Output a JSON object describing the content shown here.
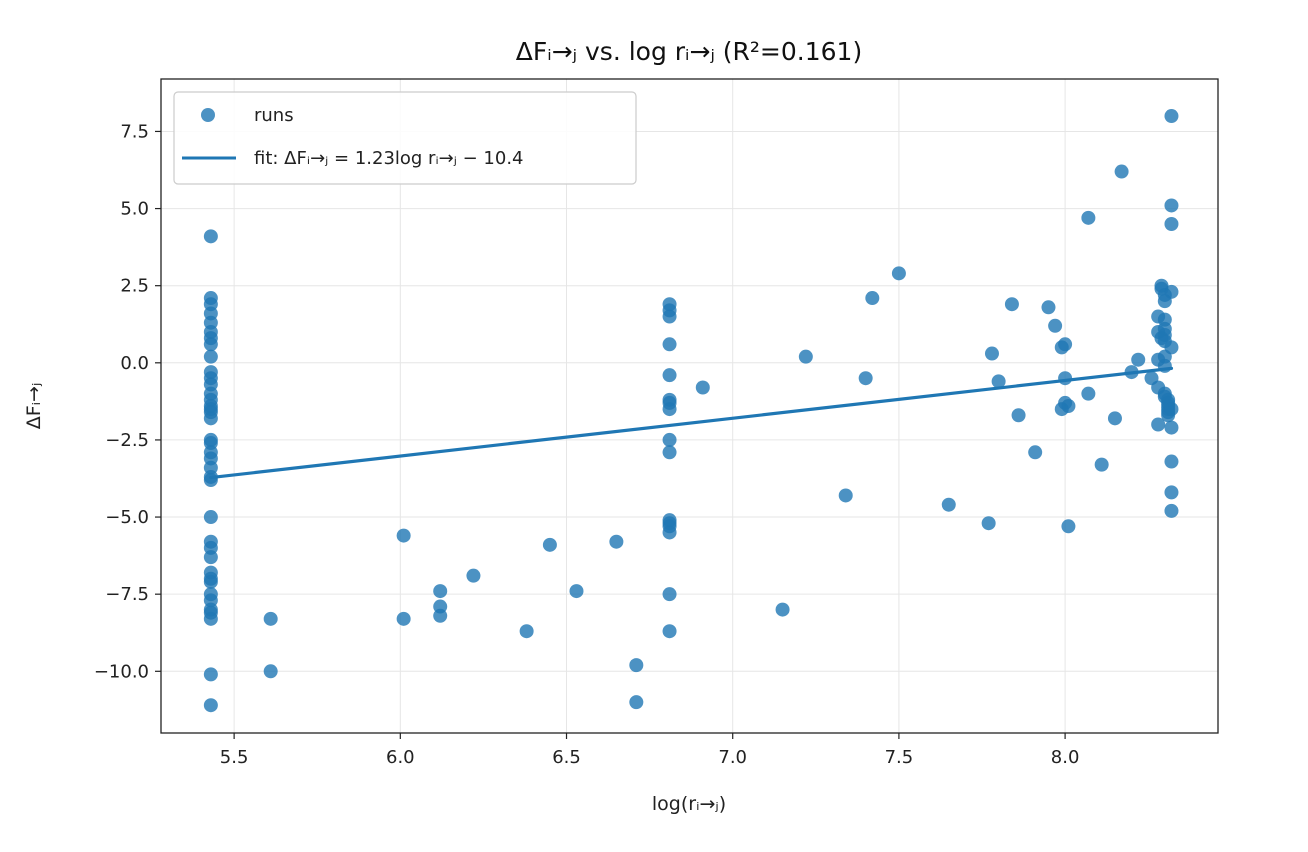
{
  "chart_data": {
    "type": "scatter",
    "title": "ΔFᵢ→ⱼ vs. log rᵢ→ⱼ (R²=0.161)",
    "xlabel": "log(rᵢ→ⱼ)",
    "ylabel": "ΔFᵢ→ⱼ",
    "xlim": [
      5.28,
      8.46
    ],
    "ylim": [
      -12.0,
      9.2
    ],
    "xticks": [
      5.5,
      6.0,
      6.5,
      7.0,
      7.5,
      8.0
    ],
    "xtick_labels": [
      "5.5",
      "6.0",
      "6.5",
      "7.0",
      "7.5",
      "8.0"
    ],
    "yticks": [
      -10.0,
      -7.5,
      -5.0,
      -2.5,
      0.0,
      2.5,
      5.0,
      7.5
    ],
    "ytick_labels": [
      "−10.0",
      "−7.5",
      "−5.0",
      "−2.5",
      "0.0",
      "2.5",
      "5.0",
      "7.5"
    ],
    "grid": true,
    "legend_position": "top-left",
    "colors": {
      "series": "#1f77b4"
    },
    "series": [
      {
        "name": "runs",
        "kind": "scatter",
        "x": [
          5.43,
          5.43,
          5.43,
          5.43,
          5.43,
          5.43,
          5.43,
          5.43,
          5.43,
          5.43,
          5.43,
          5.43,
          5.43,
          5.43,
          5.43,
          5.43,
          5.43,
          5.43,
          5.43,
          5.43,
          5.43,
          5.43,
          5.43,
          5.43,
          5.43,
          5.43,
          5.43,
          5.43,
          5.43,
          5.43,
          5.43,
          5.43,
          5.43,
          5.43,
          5.43,
          5.43,
          5.43,
          5.43,
          5.43,
          5.61,
          5.61,
          6.01,
          6.01,
          6.12,
          6.12,
          6.12,
          6.22,
          6.38,
          6.45,
          6.53,
          6.65,
          6.71,
          6.71,
          6.81,
          6.81,
          6.81,
          6.81,
          6.81,
          6.81,
          6.81,
          6.81,
          6.81,
          6.81,
          6.81,
          6.81,
          6.81,
          6.81,
          6.81,
          6.81,
          6.91,
          7.15,
          7.22,
          7.34,
          7.4,
          7.42,
          7.5,
          7.65,
          7.77,
          7.78,
          7.8,
          7.84,
          7.86,
          7.91,
          7.95,
          7.97,
          7.99,
          7.99,
          8.0,
          8.0,
          8.0,
          8.01,
          8.01,
          8.07,
          8.07,
          8.11,
          8.15,
          8.17,
          8.2,
          8.22,
          8.26,
          8.28,
          8.28,
          8.28,
          8.28,
          8.28,
          8.29,
          8.29,
          8.29,
          8.3,
          8.3,
          8.3,
          8.3,
          8.3,
          8.3,
          8.3,
          8.3,
          8.3,
          8.3,
          8.31,
          8.31,
          8.31,
          8.31,
          8.31,
          8.31,
          8.32,
          8.32,
          8.32,
          8.32,
          8.32,
          8.32,
          8.32,
          8.32,
          8.32,
          8.32
        ],
        "y": [
          4.1,
          2.1,
          1.9,
          1.6,
          1.3,
          1.0,
          0.8,
          0.6,
          0.2,
          -0.3,
          -0.5,
          -0.7,
          -1.0,
          -1.2,
          -1.5,
          -1.6,
          -1.8,
          -2.5,
          -2.6,
          -2.9,
          -3.1,
          -3.4,
          -3.7,
          -3.8,
          -5.0,
          -5.8,
          -6.0,
          -6.3,
          -6.8,
          -7.0,
          -7.1,
          -7.5,
          -7.7,
          -8.0,
          -8.1,
          -8.3,
          -10.1,
          -11.1,
          -1.4,
          -8.3,
          -10.0,
          -5.6,
          -8.3,
          -7.4,
          -7.9,
          -8.2,
          -6.9,
          -8.7,
          -5.9,
          -7.4,
          -5.8,
          -9.8,
          -11.0,
          1.9,
          1.7,
          1.5,
          0.6,
          -0.4,
          -1.2,
          -1.5,
          -2.5,
          -2.9,
          -5.1,
          -5.2,
          -5.3,
          -5.5,
          -7.5,
          -8.7,
          -1.3,
          -0.8,
          -8.0,
          0.2,
          -4.3,
          -0.5,
          2.1,
          2.9,
          -4.6,
          -5.2,
          0.3,
          -0.6,
          1.9,
          -1.7,
          -2.9,
          1.8,
          1.2,
          0.5,
          -1.5,
          0.6,
          -0.5,
          -1.3,
          -1.4,
          -5.3,
          4.7,
          -1.0,
          -3.3,
          -1.8,
          6.2,
          -0.3,
          0.1,
          -0.5,
          -2.0,
          -0.8,
          0.1,
          1.0,
          1.5,
          2.5,
          2.4,
          0.8,
          2.0,
          2.2,
          1.4,
          1.1,
          0.9,
          0.7,
          0.2,
          -0.1,
          -1.0,
          -1.1,
          -1.3,
          -1.5,
          -1.6,
          -1.4,
          -1.2,
          -1.7,
          8.0,
          5.1,
          4.5,
          2.3,
          0.5,
          -1.5,
          -2.1,
          -3.2,
          -4.2,
          -4.8
        ]
      },
      {
        "name": "fit: ΔFᵢ→ⱼ = 1.23log rᵢ→ⱼ − 10.4",
        "kind": "line",
        "x": [
          5.43,
          8.32
        ],
        "y": [
          -3.72,
          -0.18
        ]
      }
    ]
  }
}
